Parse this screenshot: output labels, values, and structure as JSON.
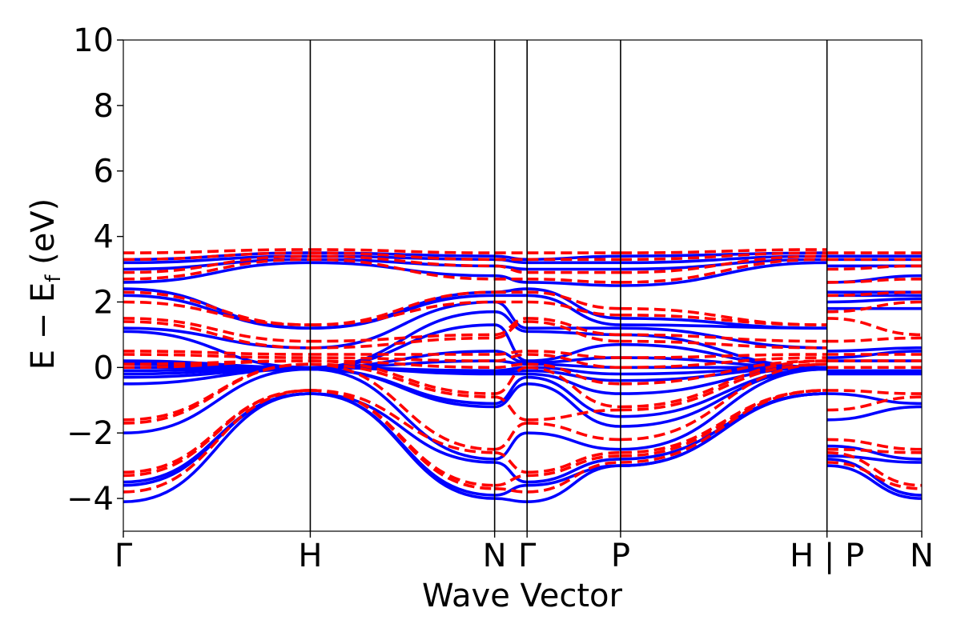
{
  "chart_data": {
    "type": "line",
    "title": "",
    "xlabel": "Wave Vector",
    "ylabel_main": "E − E",
    "ylabel_sub": "f",
    "ylabel_unit": " (eV)",
    "ylim": [
      -5,
      10
    ],
    "yticks": [
      -4,
      -2,
      0,
      2,
      4,
      6,
      8,
      10
    ],
    "ytick_labels": [
      "−4",
      "−2",
      "0",
      "2",
      "4",
      "6",
      "8",
      "10"
    ],
    "xlim": [
      0,
      6.15
    ],
    "kpoints": [
      {
        "label": "Γ",
        "x": 0
      },
      {
        "label": "H",
        "x": 1.44
      },
      {
        "label": "N",
        "x": 2.86
      },
      {
        "label": "Γ",
        "x": 3.11
      },
      {
        "label": "P",
        "x": 3.83
      },
      {
        "label": "H | P",
        "x": 5.42
      },
      {
        "label": "N",
        "x": 6.15
      }
    ],
    "series": [
      {
        "style": "solid",
        "color": "#0000ff",
        "bands": [
          [
            -4.1,
            -0.8,
            -4.0,
            -4.1,
            -3.0,
            -0.8,
            -3.0,
            -4.0
          ],
          [
            -3.6,
            -0.8,
            -3.9,
            -3.6,
            -3.0,
            -0.8,
            -2.8,
            -3.9
          ],
          [
            -3.5,
            -0.8,
            -2.9,
            -3.5,
            -2.8,
            -0.8,
            -2.7,
            -2.9
          ],
          [
            -2.0,
            -0.05,
            -2.8,
            -2.0,
            -2.5,
            -0.05,
            -2.4,
            -2.8
          ],
          [
            -0.5,
            -0.05,
            -1.2,
            -0.5,
            -1.8,
            -0.05,
            -1.6,
            -1.2
          ],
          [
            -0.3,
            -0.05,
            -1.1,
            -0.3,
            -1.5,
            -0.05,
            -0.8,
            -1.1
          ],
          [
            -0.2,
            0.0,
            -0.2,
            -0.2,
            -0.8,
            0.0,
            -0.2,
            -0.2
          ],
          [
            -0.1,
            0.0,
            -0.15,
            -0.1,
            -0.4,
            0.0,
            -0.15,
            -0.15
          ],
          [
            0.0,
            0.0,
            -0.1,
            0.0,
            -0.2,
            0.0,
            -0.1,
            -0.1
          ],
          [
            0.1,
            0.0,
            0.2,
            0.1,
            0.0,
            0.0,
            0.2,
            0.2
          ],
          [
            0.15,
            0.0,
            0.5,
            0.15,
            0.3,
            0.0,
            0.3,
            0.5
          ],
          [
            0.2,
            0.0,
            1.3,
            0.2,
            0.7,
            0.0,
            0.5,
            0.6
          ],
          [
            1.1,
            0.0,
            1.7,
            1.1,
            1.0,
            0.0,
            1.8,
            1.8
          ],
          [
            1.2,
            0.6,
            2.0,
            1.2,
            1.2,
            0.6,
            2.0,
            2.1
          ],
          [
            2.2,
            1.2,
            2.2,
            2.2,
            1.3,
            1.2,
            2.2,
            2.2
          ],
          [
            2.4,
            1.2,
            2.3,
            2.4,
            1.5,
            1.2,
            2.3,
            2.3
          ],
          [
            2.6,
            3.2,
            2.8,
            2.6,
            2.5,
            3.2,
            2.6,
            2.8
          ],
          [
            3.0,
            3.3,
            3.1,
            3.0,
            3.0,
            3.3,
            3.1,
            3.1
          ],
          [
            3.2,
            3.4,
            3.3,
            3.2,
            3.2,
            3.4,
            3.3,
            3.3
          ],
          [
            3.3,
            3.5,
            3.4,
            3.3,
            3.4,
            3.5,
            3.4,
            3.4
          ]
        ]
      },
      {
        "style": "dashed",
        "color": "#ff0000",
        "bands": [
          [
            -3.8,
            -0.7,
            -3.7,
            -3.8,
            -2.9,
            -0.7,
            -2.9,
            -3.7
          ],
          [
            -3.3,
            -0.7,
            -3.6,
            -3.3,
            -2.7,
            -0.7,
            -2.6,
            -3.6
          ],
          [
            -3.2,
            -0.7,
            -2.6,
            -3.2,
            -2.6,
            -0.7,
            -2.5,
            -2.6
          ],
          [
            -1.7,
            0.1,
            -2.5,
            -1.7,
            -2.2,
            0.1,
            -2.2,
            -2.5
          ],
          [
            -1.6,
            0.1,
            -0.9,
            -1.6,
            -1.3,
            0.1,
            -1.3,
            -0.9
          ],
          [
            0.0,
            0.2,
            -0.8,
            0.0,
            -1.2,
            0.2,
            -0.7,
            -0.8
          ],
          [
            0.1,
            0.2,
            0.0,
            0.1,
            -0.5,
            0.2,
            0.0,
            0.0
          ],
          [
            0.4,
            0.3,
            0.2,
            0.4,
            0.0,
            0.3,
            0.2,
            0.2
          ],
          [
            0.5,
            0.4,
            0.4,
            0.5,
            0.3,
            0.4,
            0.4,
            0.4
          ],
          [
            1.4,
            0.6,
            0.9,
            1.4,
            0.8,
            0.6,
            0.8,
            0.9
          ],
          [
            1.5,
            0.8,
            1.0,
            1.5,
            1.0,
            0.8,
            1.5,
            1.0
          ],
          [
            2.0,
            1.3,
            2.0,
            2.0,
            1.6,
            1.3,
            1.7,
            2.0
          ],
          [
            2.3,
            1.3,
            2.3,
            2.3,
            1.8,
            1.3,
            2.2,
            2.3
          ],
          [
            2.7,
            3.3,
            2.7,
            2.7,
            2.6,
            3.3,
            2.6,
            2.7
          ],
          [
            2.9,
            3.4,
            3.1,
            2.9,
            2.9,
            3.4,
            3.0,
            3.1
          ],
          [
            3.3,
            3.5,
            3.3,
            3.3,
            3.3,
            3.5,
            3.3,
            3.3
          ],
          [
            3.5,
            3.6,
            3.5,
            3.5,
            3.5,
            3.6,
            3.5,
            3.5
          ]
        ]
      }
    ]
  }
}
